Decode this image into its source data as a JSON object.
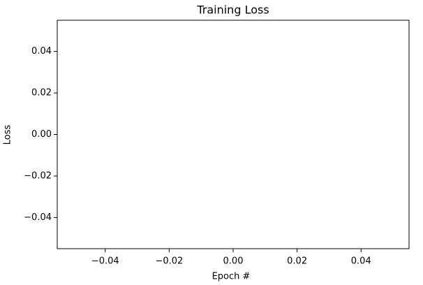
{
  "chart_data": {
    "type": "line",
    "title": "Training Loss",
    "xlabel": "Epoch #",
    "ylabel": "Loss",
    "xlim": [
      -0.055,
      0.055
    ],
    "ylim": [
      -0.055,
      0.055
    ],
    "xticks": [
      {
        "value": -0.04,
        "label": "−0.04"
      },
      {
        "value": -0.02,
        "label": "−0.02"
      },
      {
        "value": 0,
        "label": "0.00"
      },
      0.02,
      0.04
    ],
    "yticks": [
      {
        "value": -0.04,
        "label": "−0.04"
      },
      {
        "value": -0.02,
        "label": "−0.02"
      },
      {
        "value": 0,
        "label": "0.00"
      },
      0.02,
      0.04
    ]
  }
}
